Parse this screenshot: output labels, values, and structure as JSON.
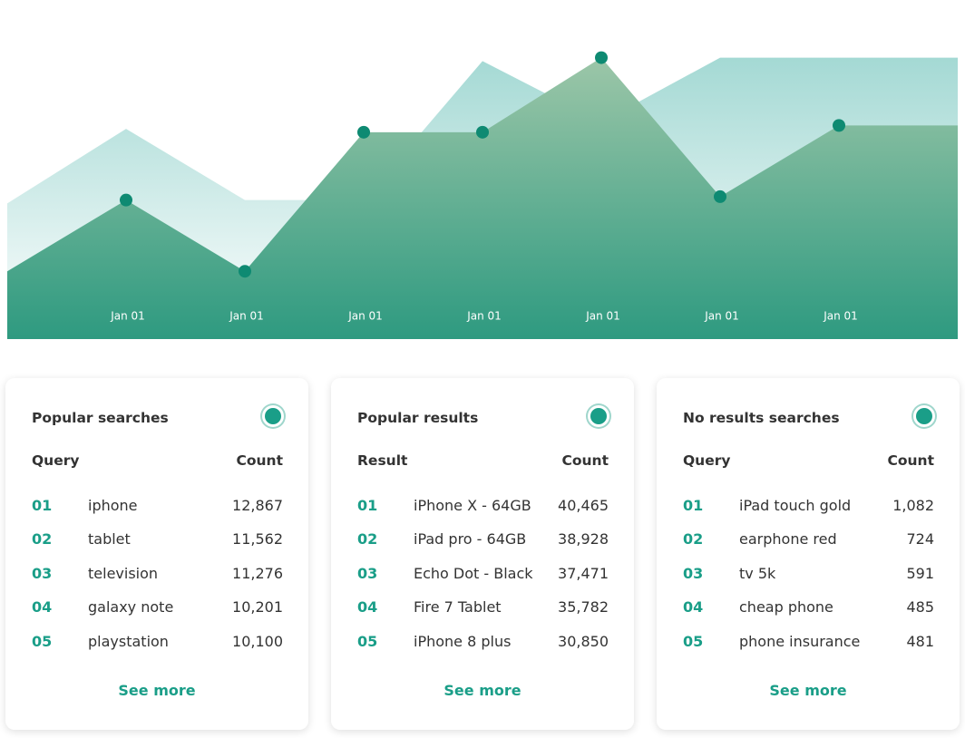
{
  "chart_data": {
    "type": "area",
    "categories": [
      null,
      "Jan 01",
      "Jan 01",
      "Jan 01",
      "Jan 01",
      "Jan 01",
      "Jan 01",
      "Jan 01",
      null
    ],
    "series": [
      {
        "color": "#a4d9d4",
        "values": [
          40,
          62,
          41,
          41,
          82,
          64,
          83,
          83,
          83
        ]
      },
      {
        "color": "#2e9a80",
        "values": [
          20,
          41,
          20,
          61,
          61,
          83,
          42,
          63,
          63
        ]
      }
    ],
    "ylim": [
      0,
      100
    ]
  },
  "cards": [
    {
      "title": "Popular searches",
      "columns": [
        "Query",
        "Count"
      ],
      "rows": [
        [
          "01",
          "iphone",
          "12,867"
        ],
        [
          "02",
          "tablet",
          "11,562"
        ],
        [
          "03",
          "television",
          "11,276"
        ],
        [
          "04",
          "galaxy note",
          "10,201"
        ],
        [
          "05",
          "playstation",
          "10,100"
        ]
      ],
      "link": "See more"
    },
    {
      "title": "Popular results",
      "columns": [
        "Result",
        "Count"
      ],
      "rows": [
        [
          "01",
          "iPhone X - 64GB",
          "40,465"
        ],
        [
          "02",
          "iPad pro - 64GB",
          "38,928"
        ],
        [
          "03",
          "Echo Dot - Black",
          "37,471"
        ],
        [
          "04",
          "Fire 7 Tablet",
          "35,782"
        ],
        [
          "05",
          "iPhone 8 plus",
          "30,850"
        ]
      ],
      "link": "See more"
    },
    {
      "title": "No results searches",
      "columns": [
        "Query",
        "Count"
      ],
      "rows": [
        [
          "01",
          "iPad touch gold",
          "1,082"
        ],
        [
          "02",
          "earphone red",
          "724"
        ],
        [
          "03",
          "tv 5k",
          "591"
        ],
        [
          "04",
          "cheap phone",
          "485"
        ],
        [
          "05",
          "phone insurance",
          "481"
        ]
      ],
      "link": "See more"
    }
  ]
}
